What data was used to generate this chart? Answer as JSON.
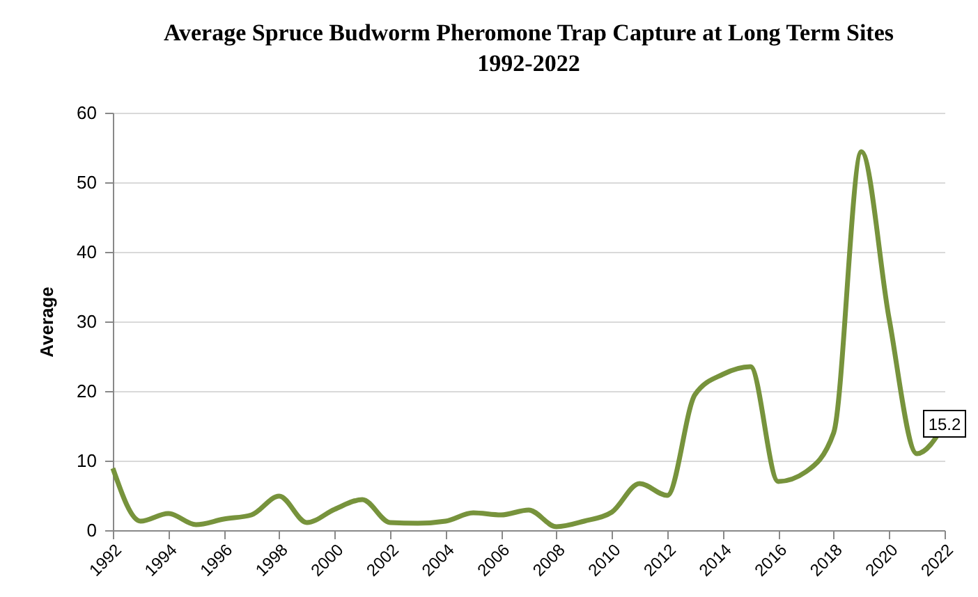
{
  "chart_data": {
    "type": "line",
    "title": [
      "Average Spruce Budworm Pheromone Trap Capture at Long Term Sites",
      "1992-2022"
    ],
    "ylabel": "Average",
    "x": [
      1992,
      1993,
      1994,
      1995,
      1996,
      1997,
      1998,
      1999,
      2000,
      2001,
      2002,
      2003,
      2004,
      2005,
      2006,
      2007,
      2008,
      2009,
      2010,
      2011,
      2012,
      2013,
      2014,
      2015,
      2016,
      2017,
      2018,
      2019,
      2020,
      2021,
      2022
    ],
    "series": [
      {
        "color": "#77933c",
        "values": [
          8.9,
          1.3,
          2.4,
          0.8,
          1.6,
          2.2,
          4.9,
          1.1,
          3.0,
          4.4,
          1.1,
          1.0,
          1.3,
          2.5,
          2.2,
          2.9,
          0.5,
          1.3,
          2.6,
          6.7,
          5.0,
          19.5,
          22.4,
          23.5,
          7.0,
          8.4,
          14.0,
          54.4,
          30.4,
          11.0,
          15.2
        ],
        "value_labels": [
          null,
          null,
          null,
          null,
          null,
          null,
          null,
          null,
          null,
          null,
          null,
          null,
          null,
          null,
          null,
          null,
          null,
          null,
          null,
          null,
          null,
          null,
          null,
          null,
          null,
          null,
          null,
          null,
          null,
          null,
          "15.2"
        ]
      }
    ],
    "xlim": [
      1992,
      2022
    ],
    "xticks": [
      1992,
      1994,
      1996,
      1998,
      2000,
      2002,
      2004,
      2006,
      2008,
      2010,
      2012,
      2014,
      2016,
      2018,
      2020,
      2022
    ],
    "ylim": [
      0,
      60
    ],
    "yticks": [
      0,
      10,
      20,
      30,
      40,
      50,
      60
    ],
    "grid": "y",
    "marker": "none",
    "line_style": "solid"
  }
}
